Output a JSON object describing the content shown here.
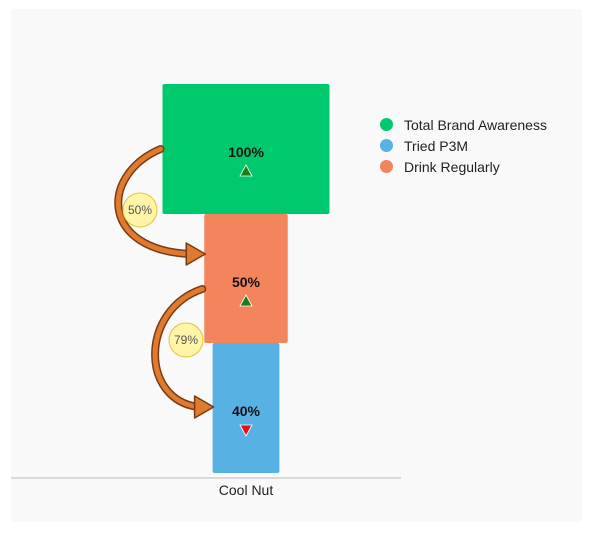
{
  "chart_data": {
    "type": "bar",
    "categories": [
      "Cool Nut"
    ],
    "series": [
      {
        "name": "Total Brand Awareness",
        "value": 100,
        "label": "100%",
        "color": "#00c96d",
        "trend": "up"
      },
      {
        "name": "Drink Regularly",
        "value": 50,
        "label": "50%",
        "color": "#f4845c",
        "trend": "up"
      },
      {
        "name": "Tried P3M",
        "value": 40,
        "label": "40%",
        "color": "#58b1e3",
        "trend": "down"
      }
    ],
    "conversions": [
      "50%",
      "79%"
    ],
    "legend": [
      {
        "name": "Total Brand Awareness",
        "color": "#00c96d"
      },
      {
        "name": "Tried P3M",
        "color": "#58b1e3"
      },
      {
        "name": "Drink Regularly",
        "color": "#f4845c"
      }
    ],
    "legend_position": "top-right",
    "trend_colors": {
      "up": "#1a7d1a",
      "down": "#e0141e"
    },
    "arrow_color": "#e07a2e",
    "bubble_color": "#fff5a8"
  }
}
